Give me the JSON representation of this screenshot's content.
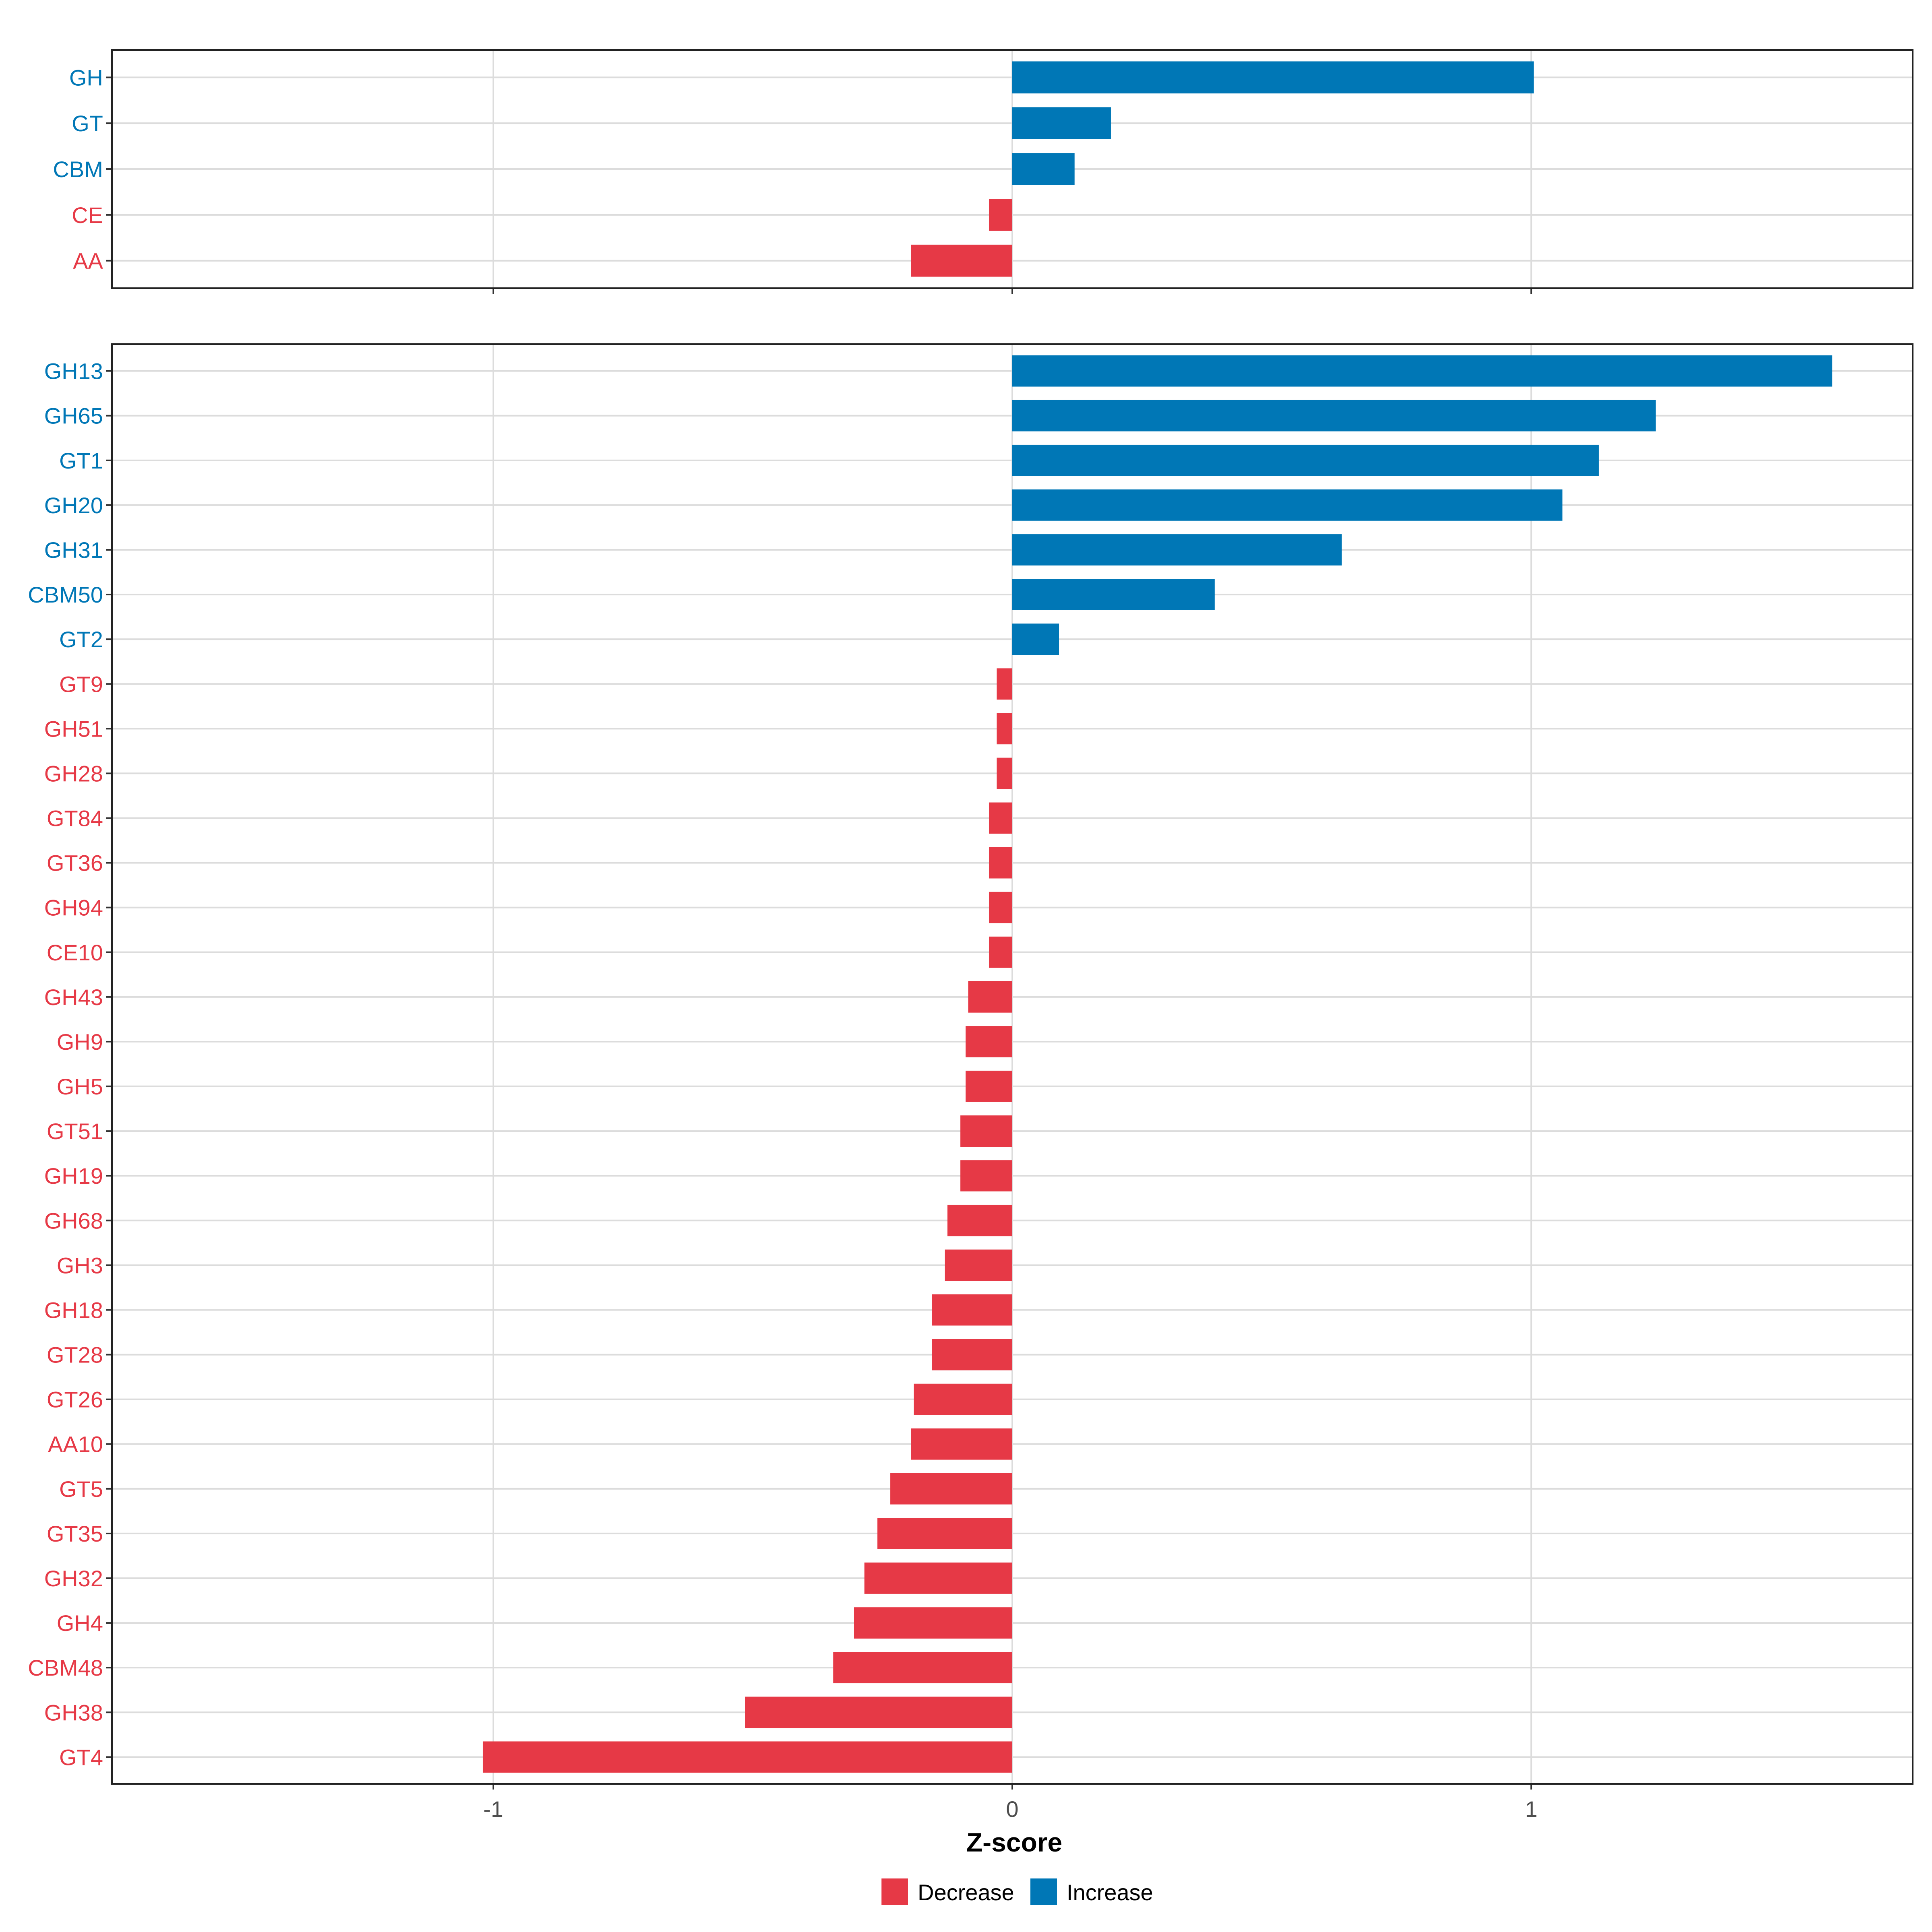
{
  "colors": {
    "increase": "#0077B6",
    "decrease": "#E63946",
    "grid": "#DCDCDC",
    "frame": "#222222",
    "tick_text": "#4D4D4D"
  },
  "chart_data": [
    {
      "type": "bar",
      "orientation": "horizontal",
      "panel": "top",
      "categories": [
        "GH",
        "GT",
        "CBM",
        "CE",
        "AA"
      ],
      "values": [
        1.005,
        0.19,
        0.12,
        -0.045,
        -0.195
      ],
      "xlim": [
        -1.735,
        1.735
      ],
      "xticks": [
        -1,
        0,
        1
      ],
      "grid": true
    },
    {
      "type": "bar",
      "orientation": "horizontal",
      "panel": "bottom",
      "categories": [
        "GH13",
        "GH65",
        "GT1",
        "GH20",
        "GH31",
        "CBM50",
        "GT2",
        "GT9",
        "GH51",
        "GH28",
        "GT84",
        "GT36",
        "GH94",
        "CE10",
        "GH43",
        "GH9",
        "GH5",
        "GT51",
        "GH19",
        "GH68",
        "GH3",
        "GH18",
        "GT28",
        "GT26",
        "AA10",
        "GT5",
        "GT35",
        "GH32",
        "GH4",
        "CBM48",
        "GH38",
        "GT4"
      ],
      "values": [
        1.58,
        1.24,
        1.13,
        1.06,
        0.635,
        0.39,
        0.09,
        -0.03,
        -0.03,
        -0.03,
        -0.045,
        -0.045,
        -0.045,
        -0.045,
        -0.085,
        -0.09,
        -0.09,
        -0.1,
        -0.1,
        -0.125,
        -0.13,
        -0.155,
        -0.155,
        -0.19,
        -0.195,
        -0.235,
        -0.26,
        -0.285,
        -0.305,
        -0.345,
        -0.515,
        -1.02
      ],
      "xlim": [
        -1.735,
        1.735
      ],
      "xticks": [
        -1,
        0,
        1
      ],
      "xticklabels": [
        "-1",
        "0",
        "1"
      ],
      "xlabel": "Z-score",
      "grid": true
    }
  ],
  "legend": {
    "placement": "bottom-center",
    "items": [
      {
        "label": "Decrease",
        "color_key": "decrease"
      },
      {
        "label": "Increase",
        "color_key": "increase"
      }
    ]
  }
}
